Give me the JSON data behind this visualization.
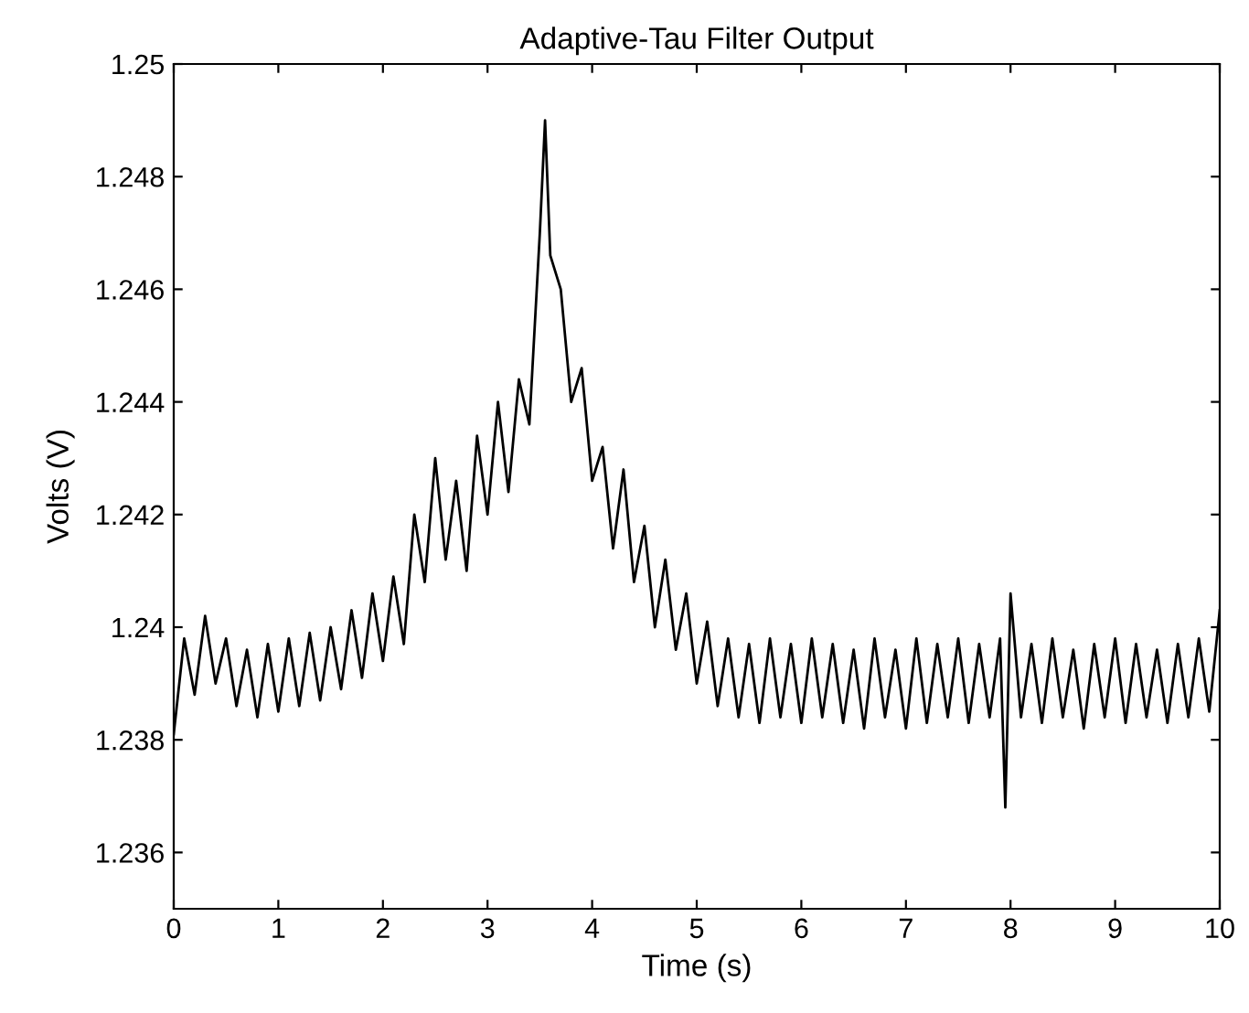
{
  "chart_data": {
    "type": "line",
    "title": "Adaptive-Tau Filter Output",
    "xlabel": "Time (s)",
    "ylabel": "Volts (V)",
    "xlim": [
      0,
      10
    ],
    "xticks": [
      0,
      1,
      2,
      3,
      4,
      5,
      6,
      7,
      8,
      9,
      10
    ],
    "ylim": [
      1.235,
      1.25
    ],
    "yticks": [
      1.236,
      1.238,
      1.24,
      1.242,
      1.244,
      1.246,
      1.248,
      1.25
    ],
    "grid": false,
    "legend": false,
    "marker": "none",
    "line_style": "solid",
    "series": [
      {
        "color": "#000000",
        "x": [
          0.0,
          0.1,
          0.2,
          0.3,
          0.4,
          0.5,
          0.6,
          0.7,
          0.8,
          0.9,
          1.0,
          1.1,
          1.2,
          1.3,
          1.4,
          1.5,
          1.6,
          1.7,
          1.8,
          1.9,
          2.0,
          2.1,
          2.2,
          2.3,
          2.4,
          2.5,
          2.6,
          2.7,
          2.8,
          2.9,
          3.0,
          3.1,
          3.2,
          3.3,
          3.4,
          3.5,
          3.55,
          3.6,
          3.7,
          3.8,
          3.9,
          4.0,
          4.1,
          4.2,
          4.3,
          4.4,
          4.5,
          4.6,
          4.7,
          4.8,
          4.9,
          5.0,
          5.1,
          5.2,
          5.3,
          5.4,
          5.5,
          5.6,
          5.7,
          5.8,
          5.9,
          6.0,
          6.1,
          6.2,
          6.3,
          6.4,
          6.5,
          6.6,
          6.7,
          6.8,
          6.9,
          7.0,
          7.1,
          7.2,
          7.3,
          7.4,
          7.5,
          7.6,
          7.7,
          7.8,
          7.9,
          7.95,
          8.0,
          8.1,
          8.2,
          8.3,
          8.4,
          8.5,
          8.6,
          8.7,
          8.8,
          8.9,
          9.0,
          9.1,
          9.2,
          9.3,
          9.4,
          9.5,
          9.6,
          9.7,
          9.8,
          9.9,
          10.0
        ],
        "values": [
          1.2381,
          1.2398,
          1.2388,
          1.2402,
          1.239,
          1.2398,
          1.2386,
          1.2396,
          1.2384,
          1.2397,
          1.2385,
          1.2398,
          1.2386,
          1.2399,
          1.2387,
          1.24,
          1.2389,
          1.2403,
          1.2391,
          1.2406,
          1.2394,
          1.2409,
          1.2397,
          1.242,
          1.2408,
          1.243,
          1.2412,
          1.2426,
          1.241,
          1.2434,
          1.242,
          1.244,
          1.2424,
          1.2444,
          1.2436,
          1.247,
          1.249,
          1.2466,
          1.246,
          1.244,
          1.2446,
          1.2426,
          1.2432,
          1.2414,
          1.2428,
          1.2408,
          1.2418,
          1.24,
          1.2412,
          1.2396,
          1.2406,
          1.239,
          1.2401,
          1.2386,
          1.2398,
          1.2384,
          1.2397,
          1.2383,
          1.2398,
          1.2384,
          1.2397,
          1.2383,
          1.2398,
          1.2384,
          1.2397,
          1.2383,
          1.2396,
          1.2382,
          1.2398,
          1.2384,
          1.2396,
          1.2382,
          1.2398,
          1.2383,
          1.2397,
          1.2384,
          1.2398,
          1.2383,
          1.2397,
          1.2384,
          1.2398,
          1.2368,
          1.2406,
          1.2384,
          1.2397,
          1.2383,
          1.2398,
          1.2384,
          1.2396,
          1.2382,
          1.2397,
          1.2384,
          1.2398,
          1.2383,
          1.2397,
          1.2384,
          1.2396,
          1.2383,
          1.2397,
          1.2384,
          1.2398,
          1.2385,
          1.2403
        ]
      }
    ]
  }
}
